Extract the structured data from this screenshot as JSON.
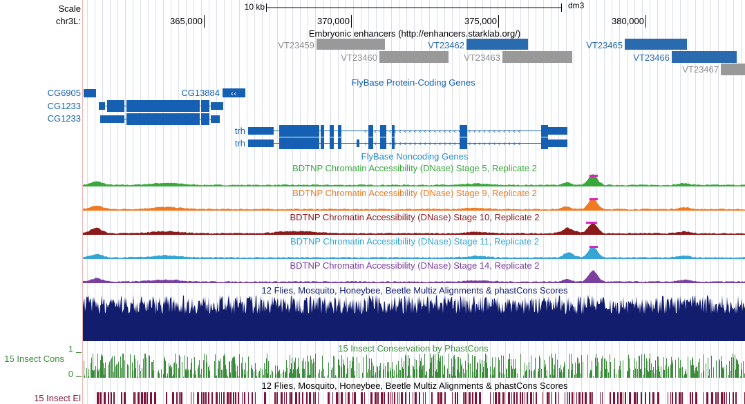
{
  "colors": {
    "gene_blue": "#1560b3",
    "enh_gray": "#999999",
    "enh_gray_text": "#8f8f8f",
    "enh_blue": "#2a6bb0",
    "noncoding": "#2a8fd0",
    "s5": "#3aa73a",
    "s9": "#f07a21",
    "s10": "#8b1a1a",
    "s11": "#35a6d4",
    "s14": "#7b3fa0",
    "multiz": "#131d6e",
    "cons": "#3c8c3c",
    "elements": "#7d1436",
    "peak": "#e020c0",
    "grid": "#d6dcef"
  },
  "header": {
    "scale_label": "Scale",
    "scale_bar_label": "10 kb",
    "assembly": "dm3",
    "chrom_label": "chr3L:",
    "ticks": [
      "365,000",
      "370,000",
      "375,000",
      "380,000"
    ]
  },
  "enhancers": {
    "title": "Embryonic enhancers (http://enhancers.starklab.org/)",
    "items": [
      {
        "id": "VT23459",
        "tone": "gray"
      },
      {
        "id": "VT23460",
        "tone": "gray"
      },
      {
        "id": "VT23462",
        "tone": "blue"
      },
      {
        "id": "VT23463",
        "tone": "gray"
      },
      {
        "id": "VT23465",
        "tone": "blue"
      },
      {
        "id": "VT23466",
        "tone": "blue"
      },
      {
        "id": "VT23467",
        "tone": "gray"
      }
    ]
  },
  "protein_genes": {
    "title": "FlyBase Protein-Coding Genes",
    "genes": [
      "CG6905",
      "CG13884",
      "CG1233",
      "CG1233",
      "trh",
      "trh"
    ]
  },
  "noncoding": {
    "title": "FlyBase Noncoding Genes"
  },
  "dnase": [
    {
      "title": "BDTNP Chromatin Accessibility (DNase) Stage 5, Replicate 2",
      "color_key": "s5"
    },
    {
      "title": "BDTNP Chromatin Accessibility (DNase) Stage 9, Replicate 2",
      "color_key": "s9"
    },
    {
      "title": "BDTNP Chromatin Accessibility (DNase) Stage 10, Replicate 2",
      "color_key": "s10"
    },
    {
      "title": "BDTNP Chromatin Accessibility (DNase) Stage 11, Replicate 2",
      "color_key": "s11"
    },
    {
      "title": "BDTNP Chromatin Accessibility (DNase) Stage 14, Replicate 2",
      "color_key": "s14"
    }
  ],
  "multiz": {
    "title": "12 Flies, Mosquito, Honeybee, Beetle Multiz Alignments & phastCons Scores"
  },
  "cons": {
    "title": "15 Insect Conservation by PhastCons",
    "side_label": "15 Insect Cons",
    "y_max": "1",
    "y_min": "0"
  },
  "elements": {
    "title": "12 Flies, Mosquito, Honeybee, Beetle Multiz Alignments & phastCons Scores",
    "side_label": "15 Insect El"
  }
}
